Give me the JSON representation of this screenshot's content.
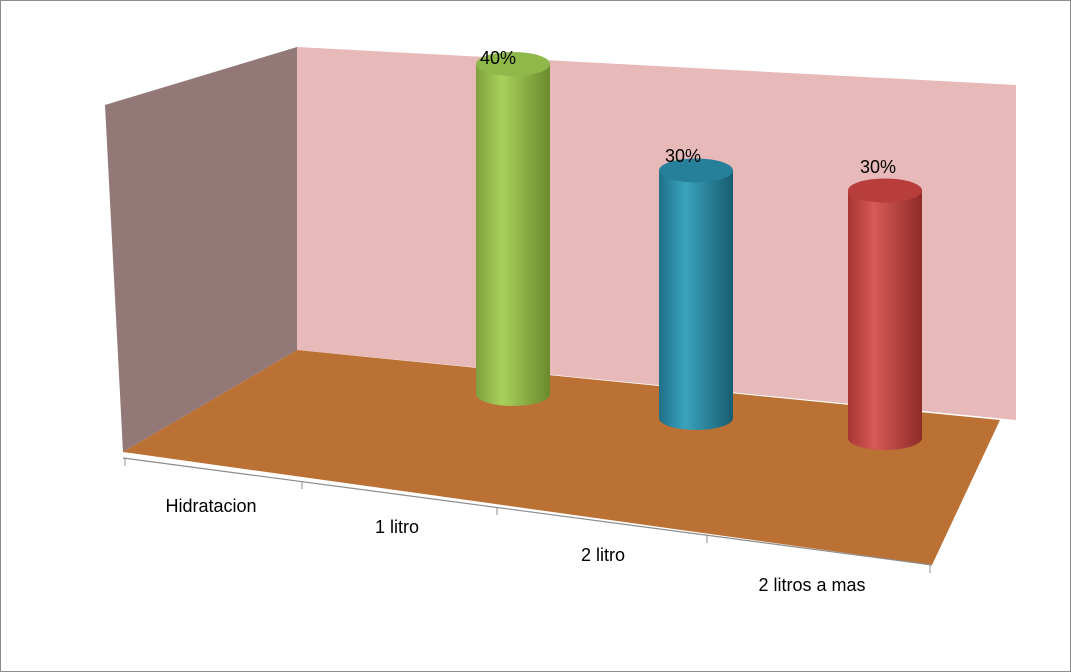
{
  "chart_data": {
    "type": "bar",
    "style": "3d-cylinder",
    "categories": [
      "Hidratacion",
      "1 litro",
      "2 litro",
      "2 litros a mas"
    ],
    "values": [
      null,
      40,
      30,
      30
    ],
    "data_labels": [
      "",
      "40%",
      "30%",
      "30%"
    ],
    "bar_colors": [
      "",
      "#9bc452",
      "#2e8fa8",
      "#c84a48"
    ],
    "ylim": [
      0,
      40
    ],
    "title": "",
    "xlabel": "",
    "ylabel": "",
    "legend": "none",
    "grid": false
  },
  "colors": {
    "back_wall": "#e8b9b9",
    "side_wall": "#927876",
    "floor": "#bb7034",
    "frame_border": "#8c8c8c"
  }
}
